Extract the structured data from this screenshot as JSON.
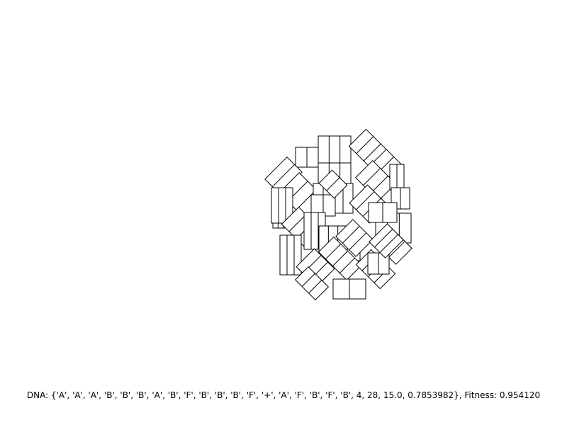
{
  "caption": {
    "text": "DNA: {'A', 'A', 'A', 'B', 'B', 'B', 'A', 'B', 'F', 'B', 'B', 'B', 'F', '+', 'A', 'F', 'B', 'F', 'B', 4, 28, 15.0, 0.7853982}, Fitness: 0.954120"
  },
  "colors": {
    "background": "#ffffff",
    "stroke": "#000000",
    "fill": "#ffffff"
  }
}
